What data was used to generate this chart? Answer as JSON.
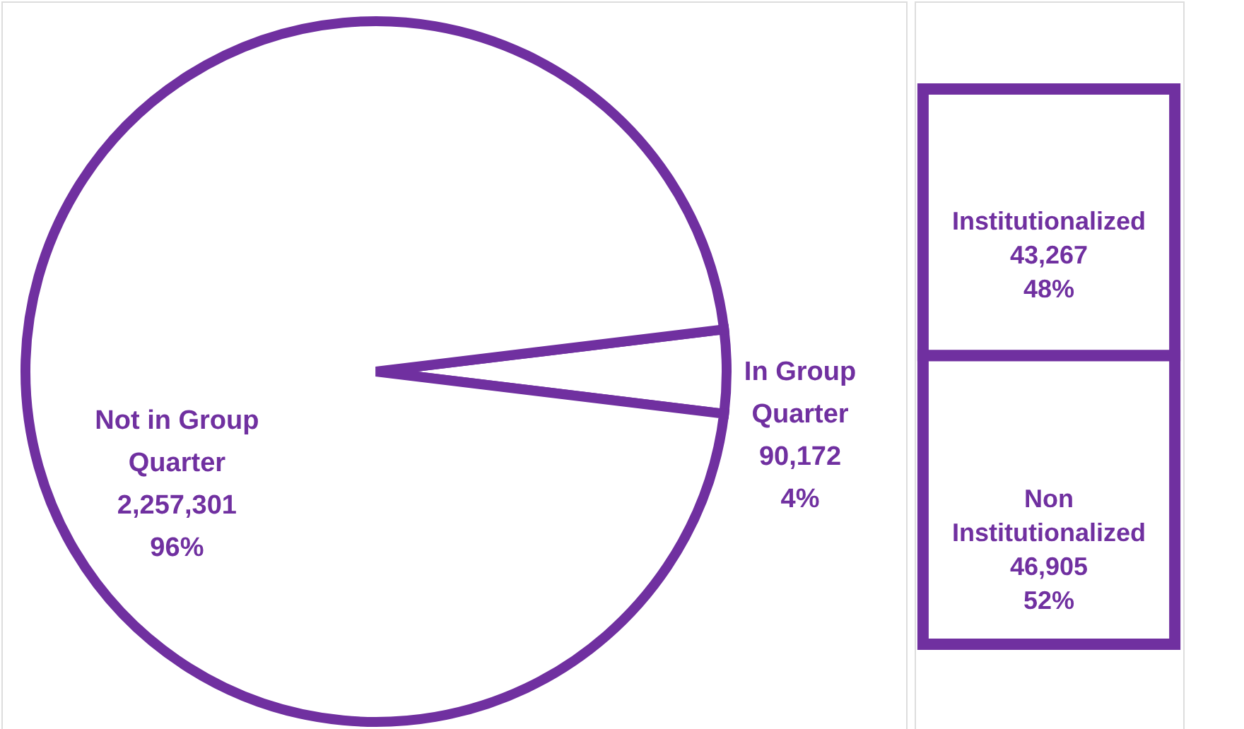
{
  "chart_data": [
    {
      "type": "pie",
      "categories": [
        "In Group Quarter",
        "Not in Group Quarter"
      ],
      "values": [
        90172,
        2257301
      ],
      "colors": [
        "#ffffff",
        "#ffffff"
      ],
      "value_labels": [
        "90,172\n4%",
        "2,257,301\n96%"
      ]
    },
    {
      "type": "bar",
      "stacked": true,
      "categories": [
        null
      ],
      "series": [
        {
          "name": "Non Institutionalized",
          "color": "#ffffff",
          "values": [
            46905
          ],
          "value_labels": [
            "46,905\n52%"
          ]
        },
        {
          "name": "Institutionalized",
          "color": "#ffffff",
          "values": [
            43267
          ],
          "value_labels": [
            "43,267\n48%"
          ]
        }
      ]
    }
  ]
}
